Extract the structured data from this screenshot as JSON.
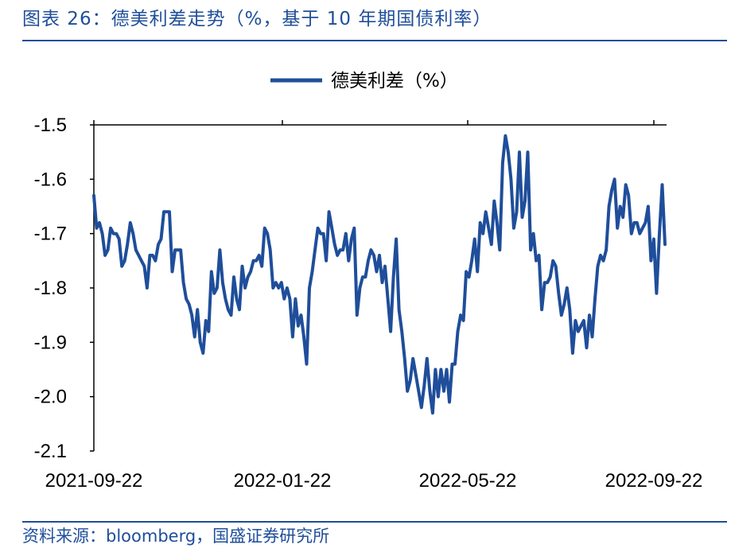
{
  "header": {
    "title": "图表 26：德美利差走势（%，基于 10 年期国债利率）"
  },
  "footer": {
    "source": "资料来源：bloomberg，国盛证券研究所"
  },
  "colors": {
    "accent": "#1f4e9a",
    "series": "#1f4e9a"
  },
  "chart_data": {
    "type": "line",
    "title": "",
    "xlabel": "",
    "ylabel": "",
    "ylim": [
      -2.1,
      -1.5
    ],
    "yticks": [
      -1.5,
      -1.6,
      -1.7,
      -1.8,
      -1.9,
      -2.0,
      -2.1
    ],
    "ytick_labels": [
      "-1.5",
      "-1.6",
      "-1.7",
      "-1.8",
      "-1.9",
      "-2.0",
      "-2.1"
    ],
    "xticks": [
      "2021-09-22",
      "2022-01-22",
      "2022-05-22",
      "2022-09-22"
    ],
    "legend": {
      "position": "top-center",
      "entries": [
        "德美利差（%）"
      ]
    },
    "grid": false,
    "series": [
      {
        "name": "德美利差（%）",
        "values": [
          -1.63,
          -1.69,
          -1.68,
          -1.7,
          -1.74,
          -1.73,
          -1.69,
          -1.7,
          -1.7,
          -1.71,
          -1.76,
          -1.75,
          -1.72,
          -1.68,
          -1.7,
          -1.73,
          -1.74,
          -1.75,
          -1.76,
          -1.8,
          -1.74,
          -1.74,
          -1.75,
          -1.72,
          -1.71,
          -1.66,
          -1.66,
          -1.66,
          -1.77,
          -1.73,
          -1.73,
          -1.73,
          -1.79,
          -1.82,
          -1.83,
          -1.85,
          -1.89,
          -1.84,
          -1.9,
          -1.92,
          -1.86,
          -1.88,
          -1.77,
          -1.81,
          -1.8,
          -1.73,
          -1.79,
          -1.82,
          -1.84,
          -1.85,
          -1.78,
          -1.82,
          -1.84,
          -1.76,
          -1.8,
          -1.78,
          -1.77,
          -1.75,
          -1.75,
          -1.74,
          -1.76,
          -1.69,
          -1.7,
          -1.73,
          -1.8,
          -1.79,
          -1.8,
          -1.79,
          -1.82,
          -1.8,
          -1.82,
          -1.89,
          -1.82,
          -1.87,
          -1.85,
          -1.89,
          -1.94,
          -1.8,
          -1.77,
          -1.73,
          -1.69,
          -1.7,
          -1.7,
          -1.75,
          -1.66,
          -1.69,
          -1.72,
          -1.74,
          -1.73,
          -1.73,
          -1.7,
          -1.75,
          -1.71,
          -1.69,
          -1.85,
          -1.8,
          -1.78,
          -1.78,
          -1.75,
          -1.73,
          -1.74,
          -1.77,
          -1.74,
          -1.79,
          -1.76,
          -1.82,
          -1.88,
          -1.78,
          -1.71,
          -1.84,
          -1.88,
          -1.93,
          -1.99,
          -1.97,
          -1.93,
          -1.96,
          -1.99,
          -2.02,
          -1.98,
          -1.93,
          -1.99,
          -2.03,
          -1.95,
          -2.0,
          -1.95,
          -1.99,
          -1.95,
          -2.01,
          -1.94,
          -1.94,
          -1.88,
          -1.85,
          -1.86,
          -1.77,
          -1.78,
          -1.75,
          -1.71,
          -1.77,
          -1.68,
          -1.7,
          -1.66,
          -1.69,
          -1.72,
          -1.64,
          -1.68,
          -1.73,
          -1.57,
          -1.52,
          -1.55,
          -1.6,
          -1.69,
          -1.66,
          -1.55,
          -1.67,
          -1.64,
          -1.55,
          -1.73,
          -1.7,
          -1.75,
          -1.74,
          -1.84,
          -1.79,
          -1.79,
          -1.78,
          -1.75,
          -1.76,
          -1.81,
          -1.85,
          -1.83,
          -1.8,
          -1.84,
          -1.92,
          -1.86,
          -1.88,
          -1.87,
          -1.86,
          -1.91,
          -1.85,
          -1.89,
          -1.82,
          -1.76,
          -1.74,
          -1.75,
          -1.73,
          -1.65,
          -1.62,
          -1.6,
          -1.69,
          -1.65,
          -1.67,
          -1.61,
          -1.63,
          -1.7,
          -1.68,
          -1.68,
          -1.7,
          -1.69,
          -1.68,
          -1.65,
          -1.75,
          -1.71,
          -1.81,
          -1.7,
          -1.61,
          -1.72
        ]
      }
    ]
  }
}
